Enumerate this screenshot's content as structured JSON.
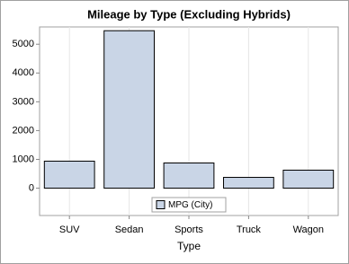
{
  "chart_data": {
    "type": "bar",
    "title": "Mileage by Type (Excluding Hybrids)",
    "x_label": "Type",
    "categories": [
      "SUV",
      "Sedan",
      "Sports",
      "Truck",
      "Wagon"
    ],
    "series": [
      {
        "name": "MPG (City)",
        "color": "#c9d5e6",
        "values": [
          938,
          5469,
          875,
          375,
          625
        ]
      }
    ],
    "ylim": [
      -950,
      5600
    ],
    "yticks": [
      0,
      1000,
      2000,
      3000,
      4000,
      5000
    ],
    "grid": "x",
    "legend_position": "bottom-center"
  }
}
